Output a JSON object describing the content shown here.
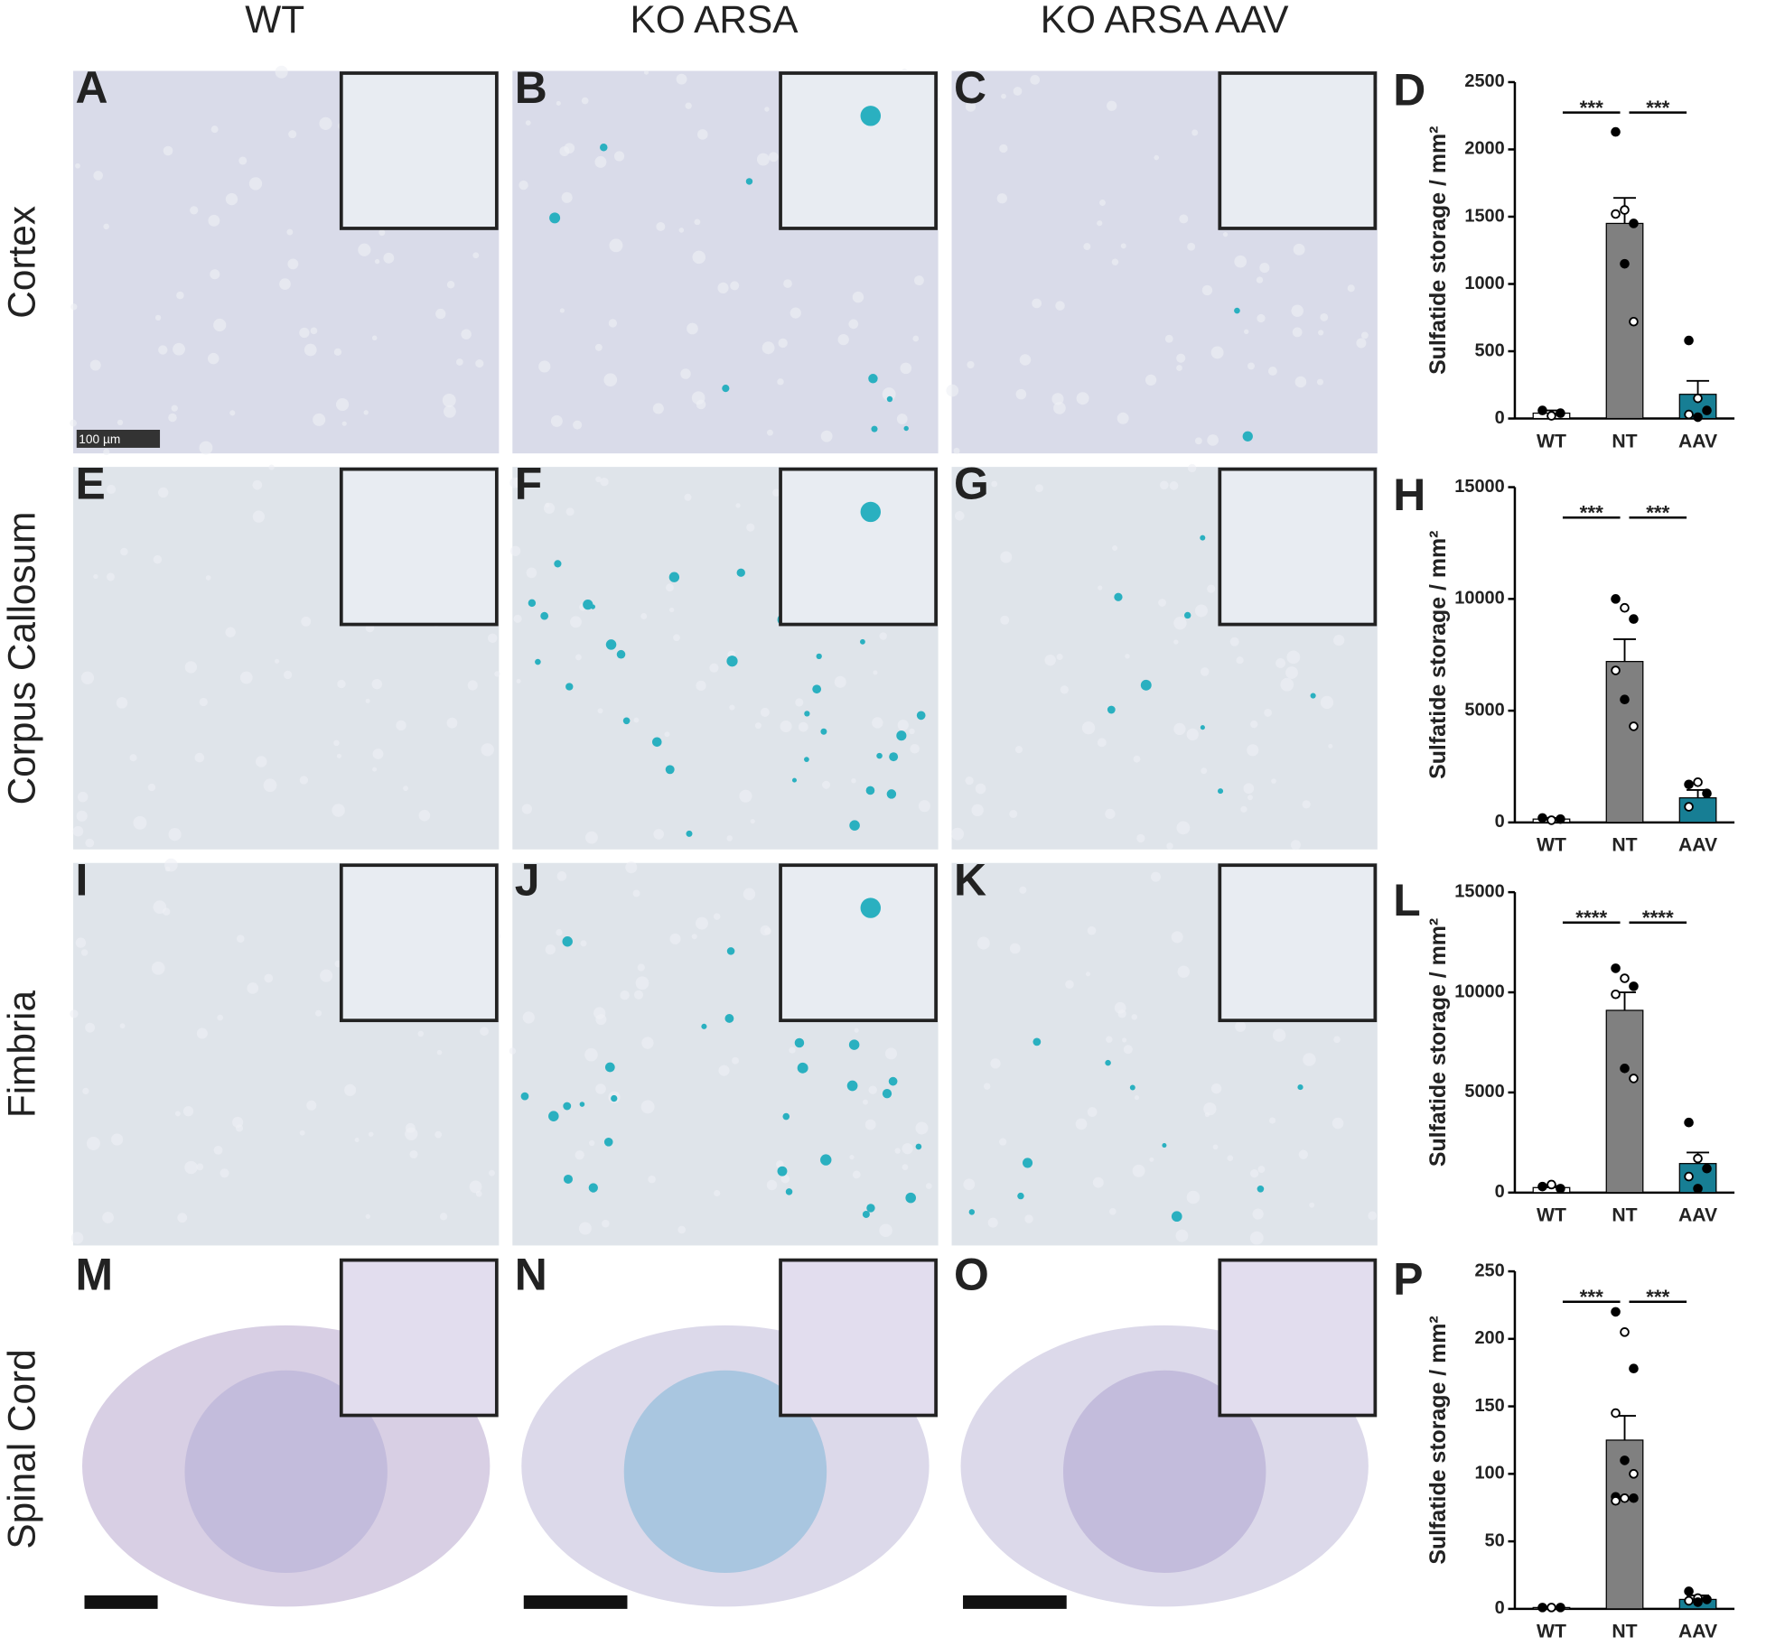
{
  "columns": [
    "WT",
    "KO ARSA",
    "KO ARSA AAV"
  ],
  "rows": [
    "Cortex",
    "Corpus Callosum",
    "Fimbria",
    "Spinal Cord"
  ],
  "panels": [
    [
      "A",
      "B",
      "C"
    ],
    [
      "E",
      "F",
      "G"
    ],
    [
      "I",
      "J",
      "K"
    ],
    [
      "M",
      "N",
      "O"
    ]
  ],
  "scale_bar": "100 µm",
  "chart_data": [
    {
      "type": "bar",
      "label": "D",
      "ylabel": "Sulfatide storage / mm²",
      "categories": [
        "WT",
        "NT",
        "AAV"
      ],
      "values": [
        40,
        1450,
        180
      ],
      "errors": [
        20,
        190,
        100
      ],
      "points": [
        [
          60,
          20,
          40
        ],
        [
          2130,
          1550,
          1450,
          1520,
          1150,
          720
        ],
        [
          580,
          150,
          60,
          30,
          10
        ]
      ],
      "colors": [
        "#ffffff",
        "#808080",
        "#177e94"
      ],
      "ylim": [
        0,
        2500
      ],
      "yticks": [
        0,
        500,
        1000,
        1500,
        2000,
        2500
      ],
      "annotations": [
        "***",
        "***"
      ]
    },
    {
      "type": "bar",
      "label": "H",
      "ylabel": "Sulfatide storage / mm²",
      "categories": [
        "WT",
        "NT",
        "AAV"
      ],
      "values": [
        150,
        7200,
        1100
      ],
      "errors": [
        50,
        1000,
        350
      ],
      "points": [
        [
          200,
          100,
          150
        ],
        [
          10000,
          9600,
          9100,
          6800,
          5500,
          4300
        ],
        [
          1700,
          1800,
          1300,
          700
        ]
      ],
      "colors": [
        "#ffffff",
        "#808080",
        "#177e94"
      ],
      "ylim": [
        0,
        15000
      ],
      "yticks": [
        0,
        5000,
        10000,
        15000
      ],
      "annotations": [
        "***",
        "***"
      ]
    },
    {
      "type": "bar",
      "label": "L",
      "ylabel": "Sulfatide storage / mm²",
      "categories": [
        "WT",
        "NT",
        "AAV"
      ],
      "values": [
        250,
        9100,
        1450
      ],
      "errors": [
        80,
        900,
        550
      ],
      "points": [
        [
          300,
          400,
          200
        ],
        [
          11200,
          10700,
          10300,
          9900,
          6200,
          5700
        ],
        [
          3500,
          1700,
          1200,
          800,
          200
        ]
      ],
      "colors": [
        "#ffffff",
        "#808080",
        "#177e94"
      ],
      "ylim": [
        0,
        15000
      ],
      "yticks": [
        0,
        5000,
        10000,
        15000
      ],
      "annotations": [
        "****",
        "****"
      ]
    },
    {
      "type": "bar",
      "label": "P",
      "ylabel": "Sulfatide storage / mm²",
      "categories": [
        "WT",
        "NT",
        "AAV"
      ],
      "values": [
        1,
        125,
        7
      ],
      "errors": [
        0.5,
        18,
        3
      ],
      "points": [
        [
          1,
          1,
          1
        ],
        [
          220,
          205,
          178,
          145,
          110,
          100,
          83,
          82,
          82,
          80
        ],
        [
          13,
          8,
          7,
          6,
          5
        ]
      ],
      "colors": [
        "#ffffff",
        "#808080",
        "#177e94"
      ],
      "ylim": [
        0,
        250
      ],
      "yticks": [
        0,
        50,
        100,
        150,
        200,
        250
      ],
      "annotations": [
        "***",
        "***"
      ]
    }
  ]
}
